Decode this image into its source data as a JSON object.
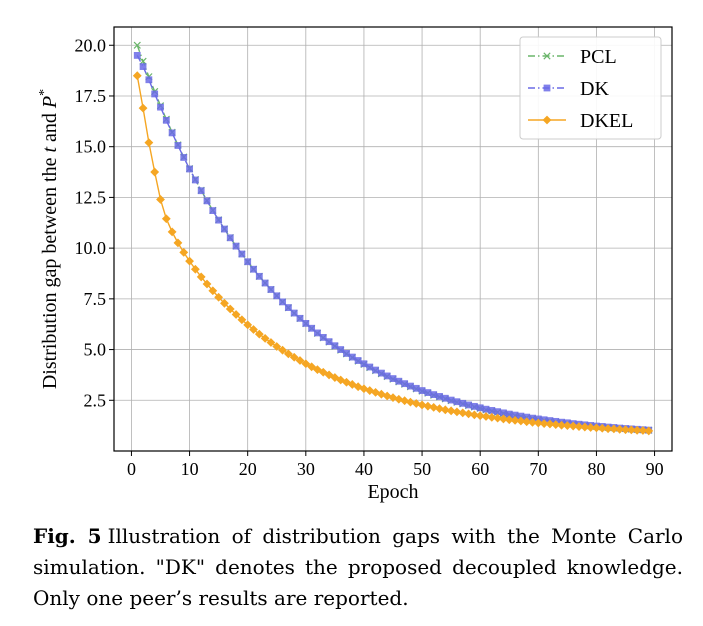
{
  "chart_data": {
    "type": "line",
    "title": "",
    "xlabel": "Epoch",
    "ylabel": {
      "prefix": "Distribution gap between the ",
      "var_t": "t",
      "middle": " and ",
      "var_P": "P",
      "sup": "*"
    },
    "xlim": [
      -3,
      93
    ],
    "ylim": [
      0,
      20.9
    ],
    "xticks": [
      0,
      10,
      20,
      30,
      40,
      50,
      60,
      70,
      80,
      90
    ],
    "xtick_labels": [
      "0",
      "10",
      "20",
      "30",
      "40",
      "50",
      "60",
      "70",
      "80",
      "90"
    ],
    "yticks": [
      2.5,
      5.0,
      7.5,
      10.0,
      12.5,
      15.0,
      17.5,
      20.0
    ],
    "ytick_labels": [
      "2.5",
      "5.0",
      "7.5",
      "10.0",
      "12.5",
      "15.0",
      "17.5",
      "20.0"
    ],
    "grid": true,
    "legend_position": "top-right",
    "x": [
      1,
      2,
      3,
      4,
      5,
      6,
      7,
      8,
      9,
      10,
      11,
      12,
      13,
      14,
      15,
      16,
      17,
      18,
      19,
      20,
      21,
      22,
      23,
      24,
      25,
      26,
      27,
      28,
      29,
      30,
      31,
      32,
      33,
      34,
      35,
      36,
      37,
      38,
      39,
      40,
      41,
      42,
      43,
      44,
      45,
      46,
      47,
      48,
      49,
      50,
      51,
      52,
      53,
      54,
      55,
      56,
      57,
      58,
      59,
      60,
      61,
      62,
      63,
      64,
      65,
      66,
      67,
      68,
      69,
      70,
      71,
      72,
      73,
      74,
      75,
      76,
      77,
      78,
      79,
      80,
      81,
      82,
      83,
      84,
      85,
      86,
      87,
      88,
      89
    ],
    "series": [
      {
        "name": "PCL",
        "color": "#6ab56a",
        "marker": "x",
        "linestyle": "dashdot",
        "values": [
          20.0,
          19.21,
          18.45,
          17.72,
          17.02,
          16.35,
          15.71,
          15.09,
          14.49,
          13.92,
          13.38,
          12.85,
          12.34,
          11.86,
          11.39,
          10.95,
          10.52,
          10.1,
          9.71,
          9.33,
          8.96,
          8.61,
          8.28,
          7.96,
          7.65,
          7.35,
          7.06,
          6.79,
          6.53,
          6.28,
          6.04,
          5.8,
          5.58,
          5.37,
          5.17,
          4.97,
          4.79,
          4.61,
          4.43,
          4.27,
          4.11,
          3.96,
          3.81,
          3.67,
          3.54,
          3.41,
          3.29,
          3.17,
          3.06,
          2.95,
          2.85,
          2.75,
          2.66,
          2.57,
          2.48,
          2.4,
          2.32,
          2.24,
          2.17,
          2.1,
          2.03,
          1.97,
          1.91,
          1.85,
          1.8,
          1.74,
          1.69,
          1.64,
          1.6,
          1.55,
          1.51,
          1.47,
          1.43,
          1.4,
          1.36,
          1.33,
          1.3,
          1.27,
          1.24,
          1.21,
          1.19,
          1.16,
          1.14,
          1.12,
          1.1,
          1.08,
          1.06,
          1.04,
          1.02
        ]
      },
      {
        "name": "DK",
        "color": "#6a6ae6",
        "marker": "s",
        "linestyle": "dashdot",
        "values": [
          19.5,
          18.95,
          18.3,
          17.6,
          16.95,
          16.3,
          15.68,
          15.06,
          14.47,
          13.9,
          13.36,
          12.83,
          12.33,
          11.85,
          11.38,
          10.94,
          10.51,
          10.1,
          9.71,
          9.33,
          8.96,
          8.61,
          8.28,
          7.96,
          7.65,
          7.35,
          7.07,
          6.8,
          6.54,
          6.29,
          6.05,
          5.82,
          5.6,
          5.39,
          5.19,
          5.0,
          4.81,
          4.63,
          4.46,
          4.3,
          4.14,
          3.99,
          3.84,
          3.7,
          3.57,
          3.44,
          3.32,
          3.2,
          3.09,
          2.98,
          2.88,
          2.78,
          2.69,
          2.6,
          2.51,
          2.43,
          2.35,
          2.27,
          2.2,
          2.13,
          2.06,
          2.0,
          1.94,
          1.88,
          1.82,
          1.77,
          1.72,
          1.67,
          1.62,
          1.58,
          1.54,
          1.5,
          1.46,
          1.42,
          1.39,
          1.35,
          1.32,
          1.29,
          1.26,
          1.23,
          1.21,
          1.18,
          1.16,
          1.13,
          1.11,
          1.09,
          1.07,
          1.05,
          1.03
        ]
      },
      {
        "name": "DKEL",
        "color": "#f5a623",
        "marker": "D",
        "linestyle": "solid",
        "values": [
          18.5,
          16.9,
          15.2,
          13.75,
          12.4,
          11.45,
          10.8,
          10.26,
          9.79,
          9.36,
          8.96,
          8.58,
          8.23,
          7.9,
          7.58,
          7.28,
          7.0,
          6.73,
          6.47,
          6.22,
          5.99,
          5.76,
          5.55,
          5.35,
          5.15,
          4.97,
          4.79,
          4.62,
          4.46,
          4.3,
          4.15,
          4.01,
          3.88,
          3.75,
          3.62,
          3.5,
          3.39,
          3.28,
          3.17,
          3.07,
          2.98,
          2.89,
          2.8,
          2.71,
          2.63,
          2.55,
          2.48,
          2.41,
          2.34,
          2.27,
          2.21,
          2.15,
          2.09,
          2.03,
          1.98,
          1.93,
          1.88,
          1.83,
          1.78,
          1.74,
          1.7,
          1.66,
          1.62,
          1.58,
          1.54,
          1.51,
          1.48,
          1.44,
          1.41,
          1.38,
          1.35,
          1.33,
          1.3,
          1.27,
          1.25,
          1.23,
          1.2,
          1.18,
          1.16,
          1.14,
          1.12,
          1.1,
          1.09,
          1.07,
          1.05,
          1.04,
          1.02,
          1.01,
          0.99
        ]
      }
    ]
  },
  "caption": {
    "label": "Fig. 5",
    "text": "Illustration of distribution gaps with the Monte Carlo simulation. \"DK\" denotes the proposed decoupled knowledge. Only one peer’s results are reported."
  }
}
